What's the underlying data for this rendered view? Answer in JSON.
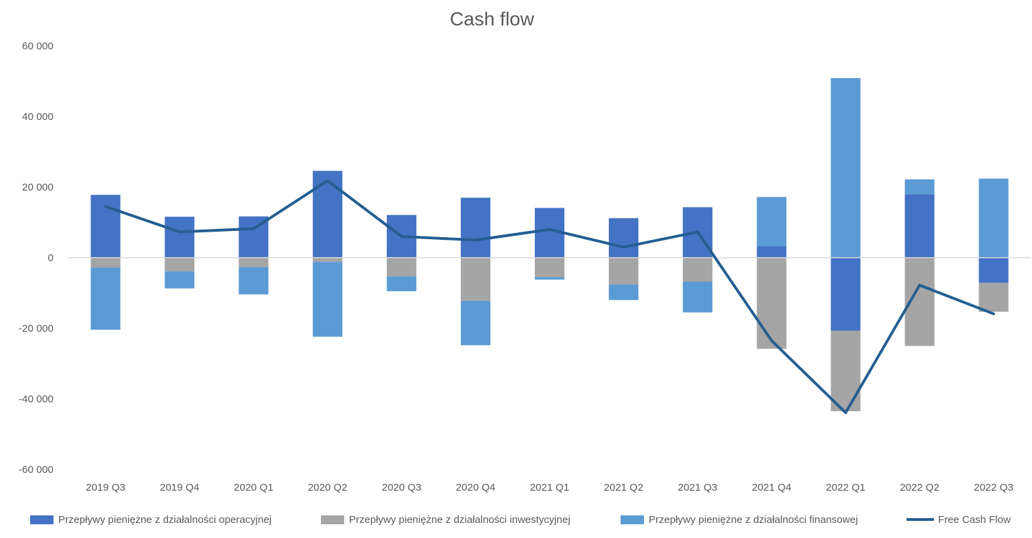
{
  "chart_data": {
    "type": "bar",
    "stacked": true,
    "title": "Cash flow",
    "xlabel": "",
    "ylabel": "",
    "ylim": [
      -60000,
      60000
    ],
    "yticks": [
      60000,
      40000,
      20000,
      0,
      -20000,
      -40000,
      -60000
    ],
    "ytick_labels": [
      "60 000",
      "40 000",
      "20 000",
      "0",
      "-20 000",
      "-40 000",
      "-60 000"
    ],
    "grid": false,
    "legend_position": "bottom",
    "categories": [
      "2019 Q3",
      "2019 Q4",
      "2020 Q1",
      "2020 Q2",
      "2020 Q3",
      "2020 Q4",
      "2021 Q1",
      "2021 Q2",
      "2021 Q3",
      "2021 Q4",
      "2022 Q1",
      "2022 Q2",
      "2022 Q3"
    ],
    "series": [
      {
        "name": "Przepływy pieniężne z działalności operacyjnej",
        "type": "bar",
        "color": "#4472C4",
        "values": [
          17800,
          11600,
          11700,
          24600,
          12100,
          17000,
          14100,
          11200,
          14300,
          3200,
          -20700,
          18000,
          -7100
        ]
      },
      {
        "name": "Przepływy pieniężne z działalności inwestycyjnej",
        "type": "bar",
        "color": "#A5A5A5",
        "values": [
          -2800,
          -3900,
          -2700,
          -1200,
          -5300,
          -12200,
          -5500,
          -7600,
          -6800,
          -25800,
          -22800,
          -25000,
          -8200
        ]
      },
      {
        "name": "Przepływy pieniężne z działalności finansowej",
        "type": "bar",
        "color": "#5B9BD5",
        "values": [
          -17600,
          -4800,
          -7700,
          -21200,
          -4200,
          -12600,
          -700,
          -4400,
          -8700,
          14000,
          50900,
          4200,
          22400
        ]
      },
      {
        "name": "Free Cash Flow",
        "type": "line",
        "color": "#255E91",
        "values": [
          14500,
          7300,
          8200,
          21800,
          6000,
          5000,
          8000,
          3000,
          7300,
          -23500,
          -43900,
          -7800,
          -15900
        ]
      }
    ]
  }
}
